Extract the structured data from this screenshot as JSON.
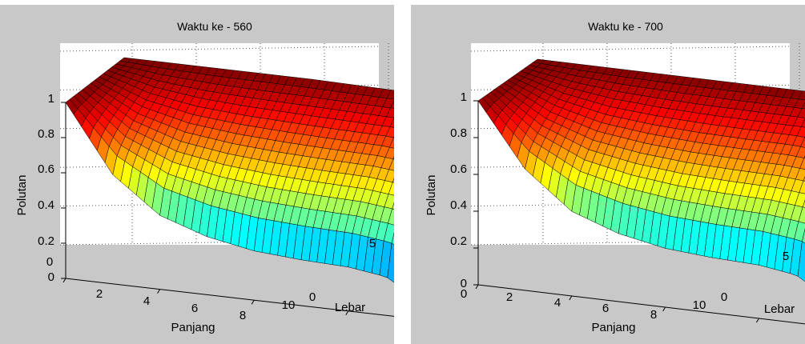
{
  "charts": [
    {
      "title": "Waktu ke - 560",
      "xlabel": "Panjang",
      "ylabel": "Lebar",
      "zlabel": "Polutan",
      "colors": [
        "#00008f",
        "#0000ff",
        "#0080ff",
        "#00ffff",
        "#80ff80",
        "#ffff00",
        "#ff8000",
        "#ff0000",
        "#800000"
      ]
    },
    {
      "title": "Waktu ke - 700",
      "xlabel": "Panjang",
      "ylabel": "Lebar",
      "zlabel": "Polutan",
      "colors": [
        "#00008f",
        "#0000ff",
        "#0080ff",
        "#00ffff",
        "#80ff80",
        "#ffff00",
        "#ff8000",
        "#ff0000",
        "#800000"
      ]
    }
  ],
  "chart_data": [
    {
      "type": "surface",
      "title": "Waktu ke - 560",
      "xlabel": "Panjang",
      "ylabel": "Lebar",
      "zlabel": "Polutan",
      "x_ticks": [
        "0",
        "2",
        "4",
        "6",
        "8",
        "10"
      ],
      "y_ticks": [
        "0",
        "5"
      ],
      "z_ticks": [
        "0",
        "0.2",
        "0.4",
        "0.6",
        "0.8",
        "1"
      ],
      "xlim": [
        0,
        10
      ],
      "ylim": [
        0,
        5
      ],
      "zlim": [
        0,
        1
      ],
      "front_profile": {
        "x": [
          0,
          1,
          2,
          3,
          4,
          5,
          6,
          6.8,
          7.3,
          8,
          9,
          10
        ],
        "z": [
          1,
          0.62,
          0.42,
          0.33,
          0.28,
          0.26,
          0.25,
          0.22,
          0.14,
          0.06,
          0.02,
          0.01
        ]
      },
      "back_profile": {
        "x": [
          0,
          2,
          4,
          6,
          7,
          7.5,
          8,
          8.5,
          9,
          9.5,
          10
        ],
        "z": [
          1,
          1,
          1,
          0.99,
          0.97,
          0.9,
          0.7,
          0.35,
          0.12,
          0.03,
          0.01
        ]
      }
    },
    {
      "type": "surface",
      "title": "Waktu ke - 700",
      "xlabel": "Panjang",
      "ylabel": "Lebar",
      "zlabel": "Polutan",
      "x_ticks": [
        "0",
        "2",
        "4",
        "6",
        "8",
        "10"
      ],
      "y_ticks": [
        "0",
        "5"
      ],
      "z_ticks": [
        "0",
        "0.2",
        "0.4",
        "0.6",
        "0.8",
        "1"
      ],
      "xlim": [
        0,
        10
      ],
      "ylim": [
        0,
        5
      ],
      "zlim": [
        0,
        1
      ],
      "front_profile": {
        "x": [
          0,
          1,
          2,
          3,
          4,
          5,
          6,
          6.8,
          7.3,
          8,
          9,
          10
        ],
        "z": [
          1,
          0.66,
          0.46,
          0.37,
          0.32,
          0.3,
          0.29,
          0.26,
          0.18,
          0.08,
          0.03,
          0.01
        ]
      },
      "back_profile": {
        "x": [
          0,
          2,
          4,
          6,
          7,
          7.5,
          8,
          8.5,
          9,
          9.5,
          10
        ],
        "z": [
          1,
          1,
          1,
          1,
          0.99,
          0.95,
          0.82,
          0.55,
          0.25,
          0.07,
          0.02
        ]
      }
    }
  ]
}
